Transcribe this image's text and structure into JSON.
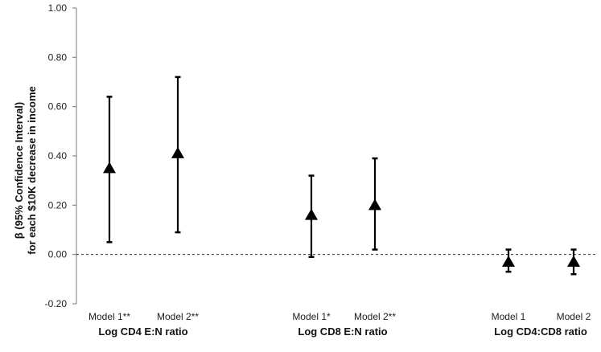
{
  "chart_data": {
    "type": "scatter",
    "title": "",
    "ylabel_line1": "β (95% Confidence Interval)",
    "ylabel_line2": "for each $10K decrease in income",
    "xlabel": "",
    "ylim": [
      -0.2,
      1.0
    ],
    "yticks": [
      "1.00",
      "0.80",
      "0.60",
      "0.40",
      "0.20",
      "0.00",
      "-0.20"
    ],
    "ytick_values": [
      1.0,
      0.8,
      0.6,
      0.4,
      0.2,
      0.0,
      -0.2
    ],
    "reference_line": 0.0,
    "grid": false,
    "marker": "triangle",
    "groups": [
      {
        "label": "Log CD4 E:N ratio",
        "points": [
          {
            "label": "Model 1**",
            "estimate": 0.35,
            "lower": 0.05,
            "upper": 0.64
          },
          {
            "label": "Model 2**",
            "estimate": 0.41,
            "lower": 0.09,
            "upper": 0.72
          }
        ]
      },
      {
        "label": "Log CD8 E:N ratio",
        "points": [
          {
            "label": "Model 1*",
            "estimate": 0.16,
            "lower": -0.01,
            "upper": 0.32
          },
          {
            "label": "Model 2**",
            "estimate": 0.2,
            "lower": 0.02,
            "upper": 0.39
          }
        ]
      },
      {
        "label": "Log CD4:CD8 ratio",
        "points": [
          {
            "label": "Model 1",
            "estimate": -0.03,
            "lower": -0.07,
            "upper": 0.02
          },
          {
            "label": "Model 2",
            "estimate": -0.03,
            "lower": -0.08,
            "upper": 0.02
          }
        ]
      }
    ]
  }
}
